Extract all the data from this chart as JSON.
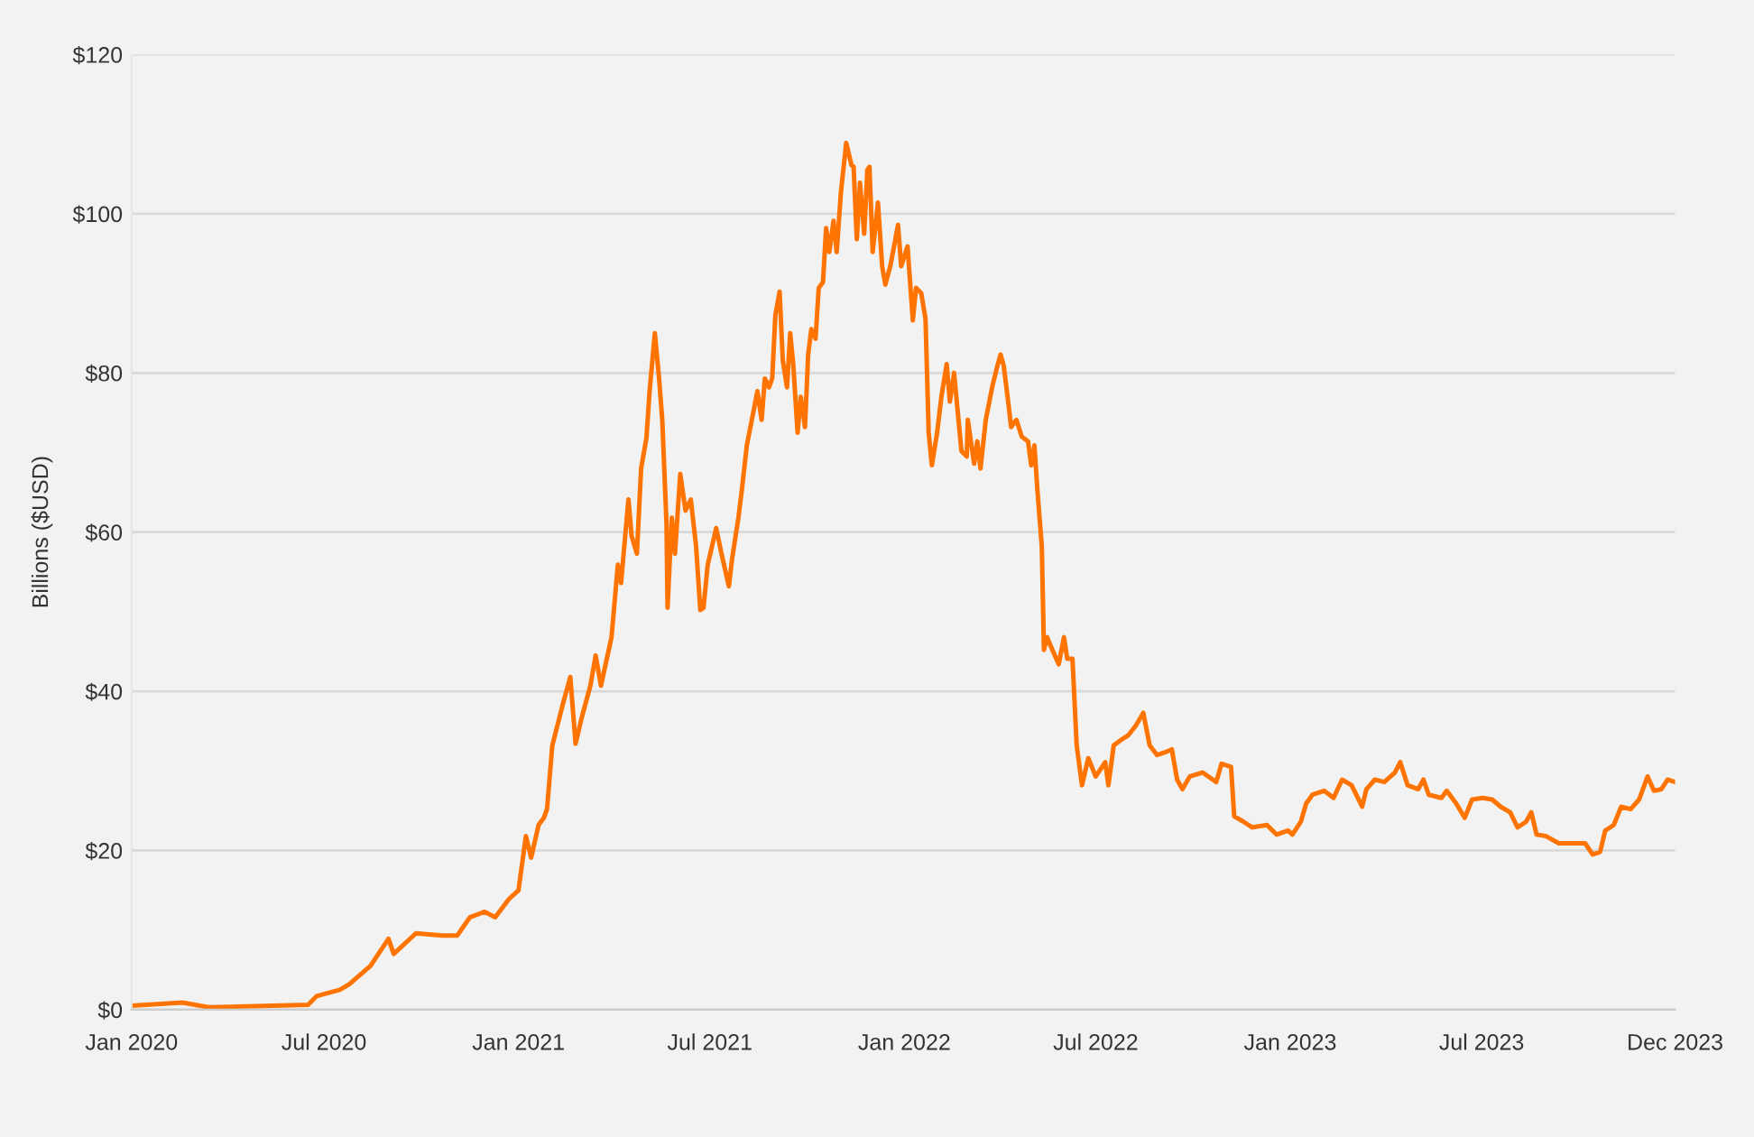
{
  "chart_data": {
    "type": "line",
    "ylabel": "Billions ($USD)",
    "x": [
      "2020-01-01",
      "2020-02-18",
      "2020-03-14",
      "2020-06-16",
      "2020-06-24",
      "2020-07-16",
      "2020-07-25",
      "2020-08-14",
      "2020-08-31",
      "2020-09-05",
      "2020-09-26",
      "2020-10-21",
      "2020-11-04",
      "2020-11-16",
      "2020-11-30",
      "2020-12-10",
      "2020-12-23",
      "2021-01-01",
      "2021-01-08",
      "2021-01-13",
      "2021-01-20",
      "2021-01-25",
      "2021-01-28",
      "2021-02-02",
      "2021-02-12",
      "2021-02-19",
      "2021-02-24",
      "2021-03-02",
      "2021-03-10",
      "2021-03-15",
      "2021-03-20",
      "2021-03-30",
      "2021-04-05",
      "2021-04-08",
      "2021-04-15",
      "2021-04-18",
      "2021-04-23",
      "2021-04-27",
      "2021-05-02",
      "2021-05-05",
      "2021-05-10",
      "2021-05-14",
      "2021-05-17",
      "2021-05-21",
      "2021-05-22",
      "2021-05-26",
      "2021-05-29",
      "2021-06-03",
      "2021-06-08",
      "2021-06-13",
      "2021-06-18",
      "2021-06-22",
      "2021-06-25",
      "2021-06-29",
      "2021-07-07",
      "2021-07-12",
      "2021-07-19",
      "2021-07-22",
      "2021-07-28",
      "2021-07-31",
      "2021-08-05",
      "2021-08-10",
      "2021-08-15",
      "2021-08-19",
      "2021-08-22",
      "2021-08-26",
      "2021-08-29",
      "2021-09-01",
      "2021-09-05",
      "2021-09-08",
      "2021-09-12",
      "2021-09-15",
      "2021-09-18",
      "2021-09-22",
      "2021-09-25",
      "2021-09-29",
      "2021-10-02",
      "2021-10-05",
      "2021-10-09",
      "2021-10-12",
      "2021-10-16",
      "2021-10-19",
      "2021-10-22",
      "2021-10-26",
      "2021-10-29",
      "2021-11-02",
      "2021-11-07",
      "2021-11-12",
      "2021-11-14",
      "2021-11-17",
      "2021-11-20",
      "2021-11-24",
      "2021-11-27",
      "2021-11-29",
      "2021-12-02",
      "2021-12-07",
      "2021-12-11",
      "2021-12-14",
      "2021-12-19",
      "2021-12-26",
      "2021-12-29",
      "2022-01-04",
      "2022-01-09",
      "2022-01-12",
      "2022-01-17",
      "2022-01-21",
      "2022-01-24",
      "2022-01-27",
      "2022-02-01",
      "2022-02-05",
      "2022-02-10",
      "2022-02-13",
      "2022-02-17",
      "2022-02-24",
      "2022-03-01",
      "2022-03-02",
      "2022-03-08",
      "2022-03-11",
      "2022-03-14",
      "2022-03-19",
      "2022-03-25",
      "2022-03-30",
      "2022-04-02",
      "2022-04-05",
      "2022-04-09",
      "2022-04-12",
      "2022-04-17",
      "2022-04-22",
      "2022-04-28",
      "2022-05-01",
      "2022-05-04",
      "2022-05-07",
      "2022-05-11",
      "2022-05-13",
      "2022-05-16",
      "2022-05-21",
      "2022-05-27",
      "2022-06-01",
      "2022-06-04",
      "2022-06-09",
      "2022-06-13",
      "2022-06-18",
      "2022-06-24",
      "2022-07-01",
      "2022-07-10",
      "2022-07-13",
      "2022-07-18",
      "2022-07-25",
      "2022-08-01",
      "2022-08-08",
      "2022-08-15",
      "2022-08-21",
      "2022-08-28",
      "2022-09-04",
      "2022-09-11",
      "2022-09-16",
      "2022-09-21",
      "2022-09-28",
      "2022-10-10",
      "2022-10-23",
      "2022-10-28",
      "2022-11-06",
      "2022-11-09",
      "2022-11-18",
      "2022-11-26",
      "2022-12-10",
      "2022-12-19",
      "2022-12-30",
      "2023-01-03",
      "2023-01-11",
      "2023-01-16",
      "2023-01-22",
      "2023-02-02",
      "2023-02-11",
      "2023-02-19",
      "2023-02-28",
      "2023-03-10",
      "2023-03-14",
      "2023-03-22",
      "2023-03-31",
      "2023-04-10",
      "2023-04-15",
      "2023-04-22",
      "2023-05-02",
      "2023-05-07",
      "2023-05-12",
      "2023-05-24",
      "2023-05-29",
      "2023-06-07",
      "2023-06-15",
      "2023-06-22",
      "2023-07-02",
      "2023-07-11",
      "2023-07-19",
      "2023-07-28",
      "2023-08-04",
      "2023-08-12",
      "2023-08-17",
      "2023-08-22",
      "2023-08-31",
      "2023-09-12",
      "2023-09-24",
      "2023-10-07",
      "2023-10-14",
      "2023-10-21",
      "2023-10-26",
      "2023-11-03",
      "2023-11-10",
      "2023-11-19",
      "2023-11-27",
      "2023-12-05",
      "2023-12-11",
      "2023-12-18",
      "2023-12-24",
      "2023-12-31"
    ],
    "series": [
      {
        "color": "#ff7300",
        "values": [
          0.5,
          0.9,
          0.3,
          0.6,
          1.7,
          2.5,
          3.2,
          5.5,
          8.9,
          7.0,
          9.6,
          9.3,
          9.3,
          11.6,
          12.3,
          11.6,
          13.9,
          15.0,
          21.8,
          19.1,
          23.2,
          24.1,
          25.2,
          33.2,
          38.4,
          41.8,
          33.4,
          36.8,
          40.7,
          44.5,
          40.7,
          46.8,
          55.9,
          53.6,
          64.1,
          59.5,
          57.3,
          68.0,
          71.8,
          77.7,
          85.0,
          79.3,
          74.1,
          61.1,
          50.5,
          61.8,
          57.3,
          67.3,
          62.7,
          64.1,
          58.2,
          50.2,
          50.5,
          55.9,
          60.5,
          57.3,
          53.2,
          56.6,
          61.8,
          65.0,
          70.9,
          74.3,
          77.7,
          74.1,
          79.3,
          78.2,
          79.3,
          87.3,
          90.2,
          81.6,
          78.2,
          85.0,
          80.9,
          72.5,
          77.0,
          73.2,
          82.3,
          85.5,
          84.3,
          90.7,
          91.4,
          98.2,
          95.2,
          99.1,
          95.2,
          102.7,
          108.9,
          106.1,
          105.9,
          96.8,
          103.9,
          97.5,
          105.5,
          105.9,
          95.2,
          101.4,
          93.4,
          91.1,
          93.6,
          98.6,
          93.4,
          95.9,
          86.6,
          90.7,
          90.0,
          86.8,
          72.5,
          68.4,
          72.5,
          77.0,
          81.1,
          76.4,
          80.0,
          70.2,
          69.5,
          74.1,
          68.6,
          71.4,
          68.0,
          74.1,
          78.2,
          80.9,
          82.3,
          80.9,
          76.6,
          73.2,
          74.1,
          72.0,
          71.4,
          68.4,
          70.9,
          65.0,
          58.2,
          45.2,
          46.8,
          45.2,
          43.4,
          46.8,
          44.1,
          44.1,
          33.2,
          28.2,
          31.6,
          29.3,
          31.1,
          28.2,
          33.2,
          33.9,
          34.5,
          35.7,
          37.3,
          33.2,
          32.0,
          32.3,
          32.7,
          28.9,
          27.7,
          29.3,
          29.8,
          28.6,
          30.9,
          30.5,
          24.3,
          23.6,
          22.9,
          23.2,
          22.0,
          22.5,
          22.0,
          23.6,
          25.9,
          27.0,
          27.5,
          26.6,
          28.9,
          28.2,
          25.5,
          27.7,
          28.9,
          28.6,
          29.8,
          31.1,
          28.2,
          27.7,
          28.9,
          27.0,
          26.6,
          27.5,
          25.9,
          24.1,
          26.4,
          26.6,
          26.4,
          25.5,
          24.8,
          22.9,
          23.6,
          24.8,
          22.0,
          21.8,
          20.9,
          20.9,
          20.9,
          19.5,
          19.8,
          22.5,
          23.2,
          25.5,
          25.2,
          26.4,
          29.3,
          27.5,
          27.7,
          28.9,
          28.6
        ]
      }
    ],
    "xlim": [
      "2020-01-01",
      "2023-12-31"
    ],
    "xticks": [
      {
        "value": "2020-01-01",
        "label": "Jan 2020"
      },
      {
        "value": "2020-07-01",
        "label": "Jul 2020"
      },
      {
        "value": "2021-01-01",
        "label": "Jan 2021"
      },
      {
        "value": "2021-07-01",
        "label": "Jul 2021"
      },
      {
        "value": "2022-01-01",
        "label": "Jan 2022"
      },
      {
        "value": "2022-07-01",
        "label": "Jul 2022"
      },
      {
        "value": "2023-01-01",
        "label": "Jan 2023"
      },
      {
        "value": "2023-07-01",
        "label": "Jul 2023"
      },
      {
        "value": "2023-12-31",
        "label": "Dec 2023"
      }
    ],
    "ylim": [
      0,
      120
    ],
    "yticks": [
      {
        "value": 0,
        "label": "$0"
      },
      {
        "value": 20,
        "label": "$20"
      },
      {
        "value": 40,
        "label": "$40"
      },
      {
        "value": 60,
        "label": "$60"
      },
      {
        "value": 80,
        "label": "$80"
      },
      {
        "value": 100,
        "label": "$100"
      },
      {
        "value": 120,
        "label": "$120"
      }
    ],
    "grid": "y",
    "marker": "none",
    "line_style": "solid"
  }
}
